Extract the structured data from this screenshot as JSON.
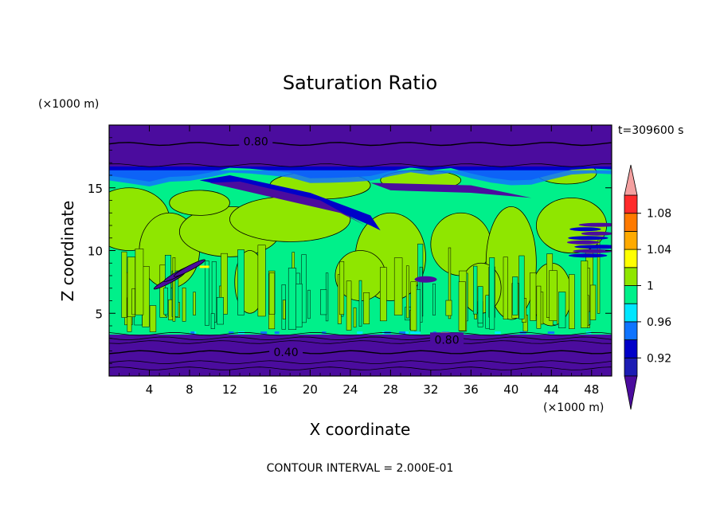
{
  "chart_data": {
    "type": "heatmap",
    "title": "Saturation Ratio",
    "xlabel": "X coordinate",
    "ylabel": "Z coordinate",
    "x_unit": "(×1000 m)",
    "y_unit": "(×1000 m)",
    "time_label": "t=309600 s",
    "footer": "CONTOUR INTERVAL = 2.000E-01",
    "xlim": [
      0,
      50
    ],
    "ylim": [
      0,
      20
    ],
    "x_ticks": [
      4,
      8,
      12,
      16,
      20,
      24,
      28,
      32,
      36,
      40,
      44,
      48
    ],
    "y_ticks": [
      5,
      10,
      15
    ],
    "grid": false,
    "legend": "right",
    "colorbar": {
      "levels": [
        0.9,
        0.92,
        0.94,
        0.96,
        0.98,
        1.0,
        1.02,
        1.04,
        1.06,
        1.08,
        1.1
      ],
      "labels": [
        "0.92",
        "0.96",
        "1",
        "1.04",
        "1.08"
      ],
      "label_values": [
        0.92,
        0.96,
        1.0,
        1.04,
        1.08
      ],
      "colors": [
        "#4b0c9e",
        "#1c1cb4",
        "#0000c8",
        "#0f74ff",
        "#00e6ff",
        "#00f08a",
        "#8fe600",
        "#ffff00",
        "#ffaa00",
        "#ff7a00",
        "#ff2b2b",
        "#f4a0a0"
      ]
    },
    "contour_labels": [
      {
        "text": "0.80",
        "x": 14.6,
        "z": 18.7
      },
      {
        "text": "0.80",
        "x": 33.6,
        "z": 2.9
      },
      {
        "text": "0.40",
        "x": 17.6,
        "z": 1.9
      }
    ],
    "bands": [
      {
        "level": "0.90",
        "z": [
          0.0,
          3.3
        ]
      },
      {
        "level": "0.90",
        "z": [
          16.6,
          20.0
        ]
      },
      {
        "level": "1.00",
        "z": [
          3.3,
          16.8
        ]
      }
    ]
  }
}
